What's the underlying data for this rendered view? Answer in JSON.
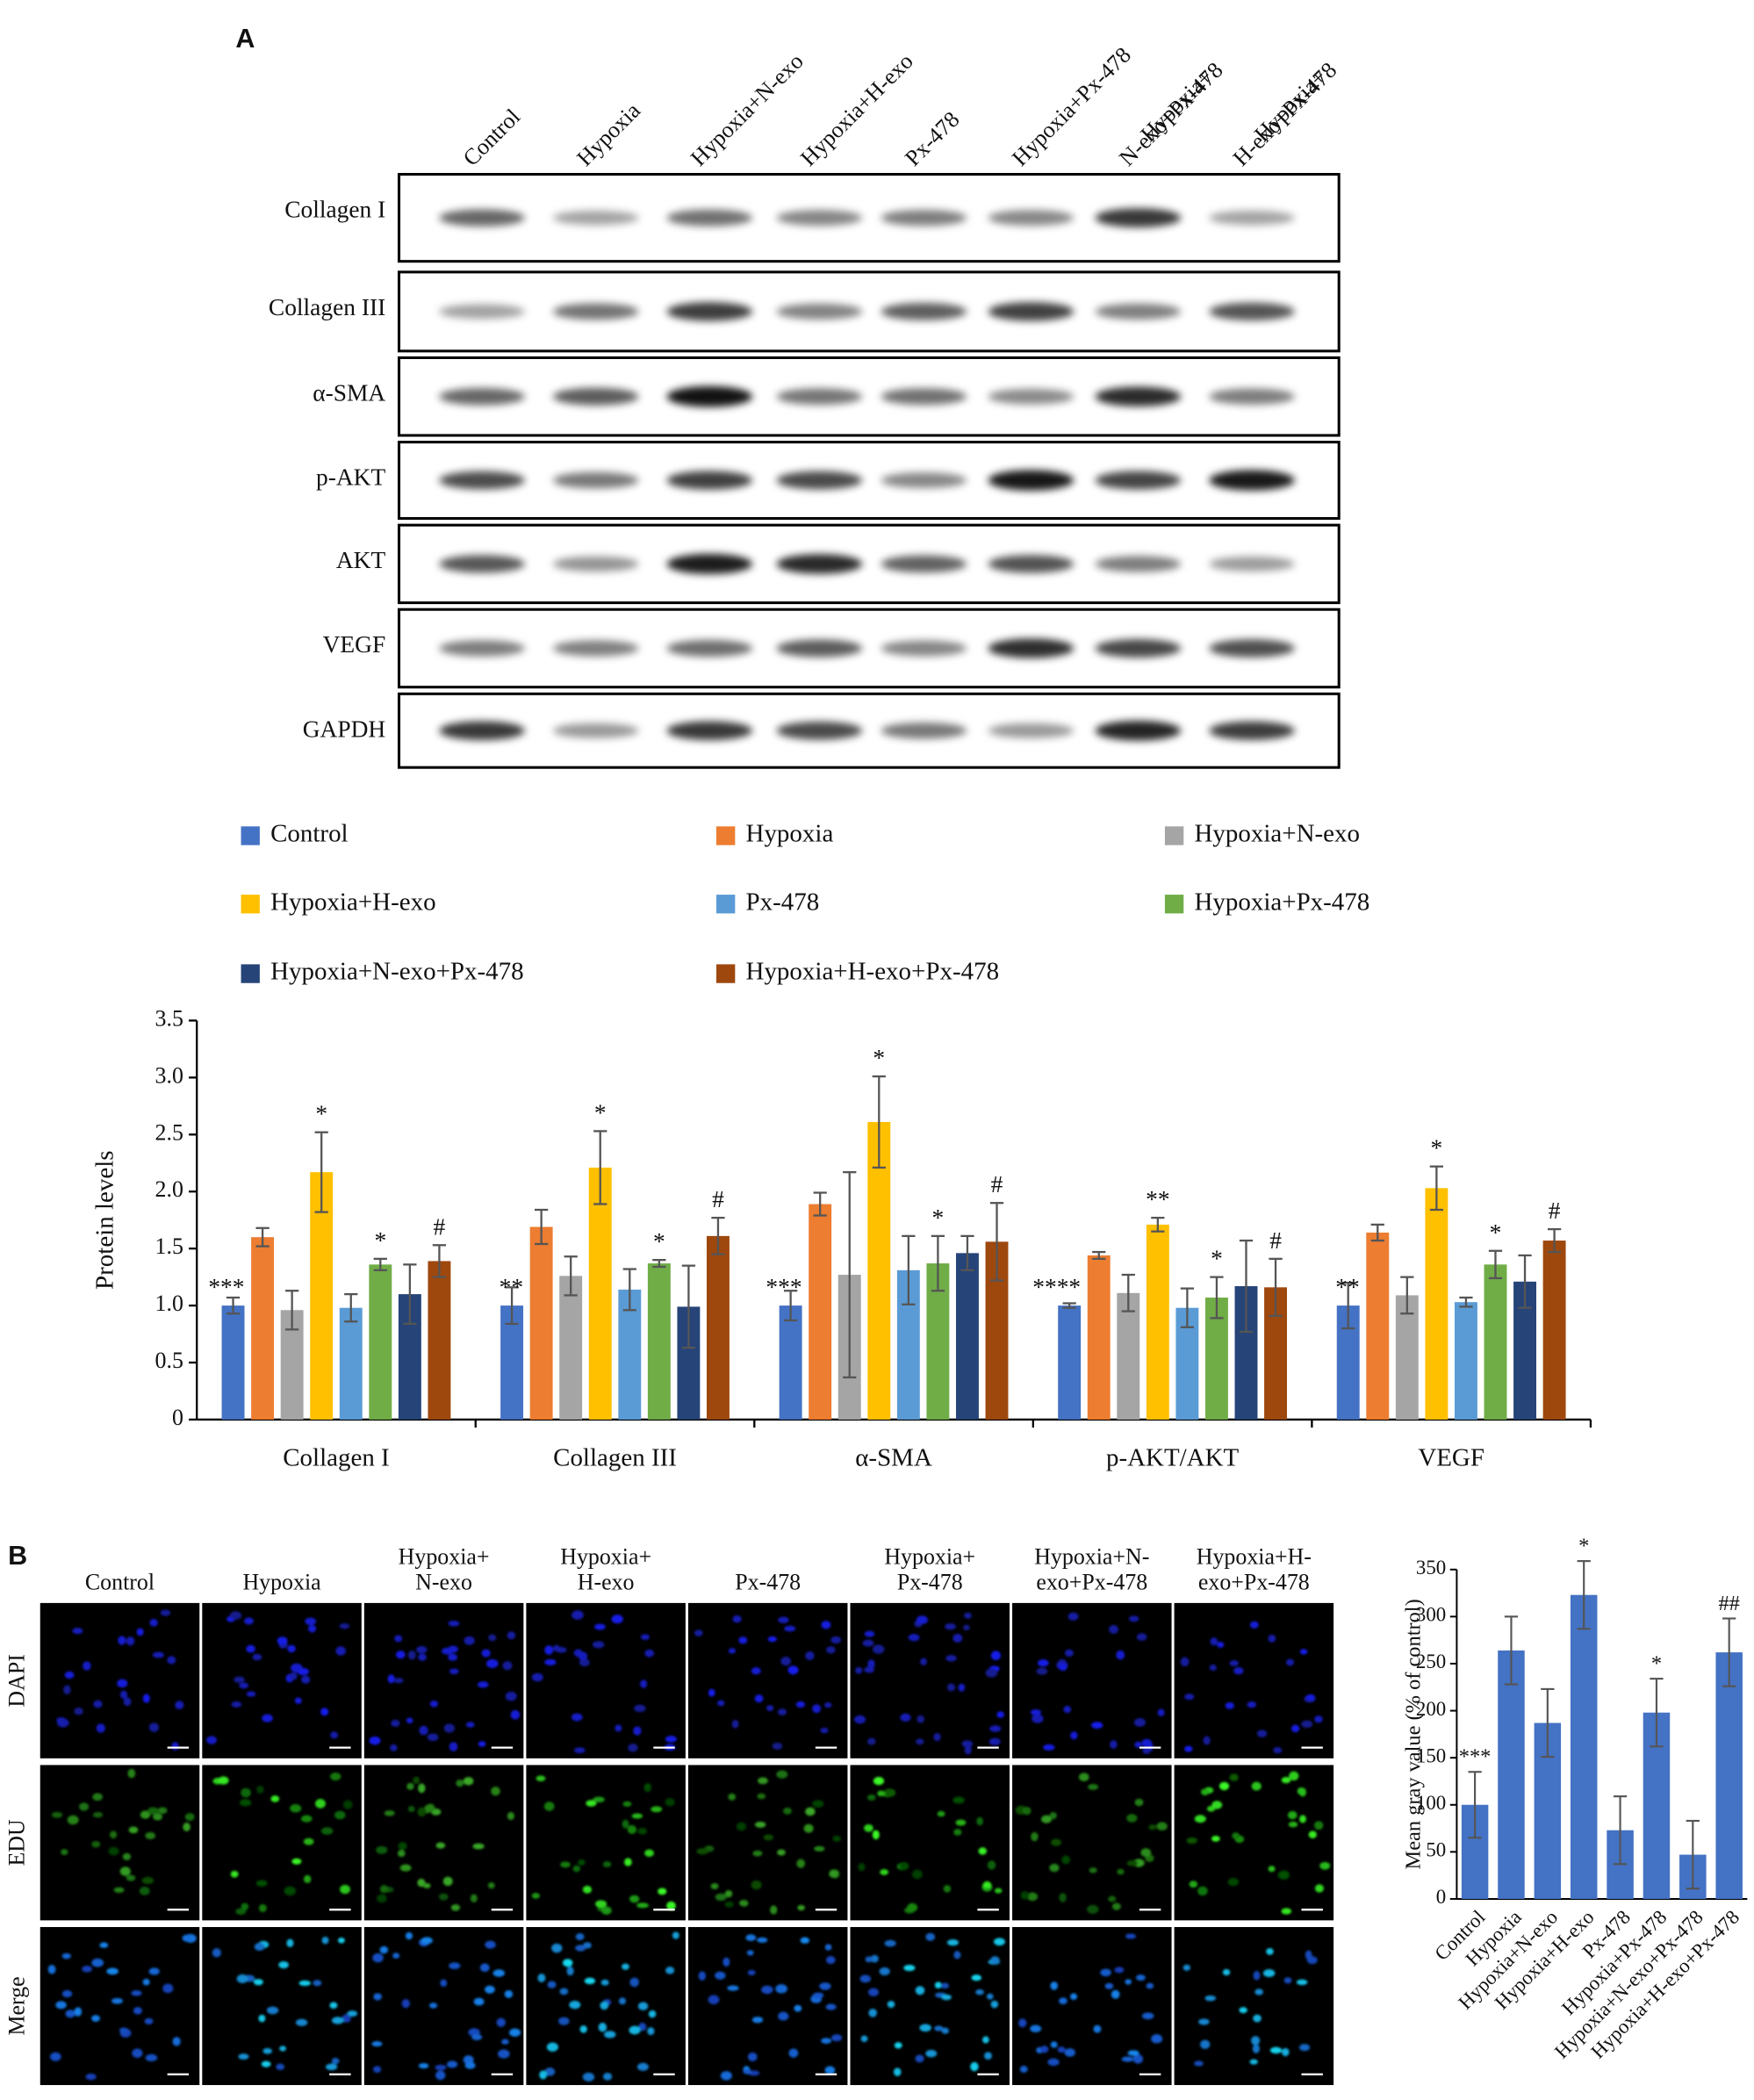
{
  "panel_labels": [
    "A",
    "B"
  ],
  "blot": {
    "lanes": [
      [
        "Control"
      ],
      [
        "Hypoxia"
      ],
      [
        "Hypoxia+N-exo"
      ],
      [
        "Hypoxia+H-exo"
      ],
      [
        "Px-478"
      ],
      [
        "Hypoxia+Px-478"
      ],
      [
        "Hypoxia+",
        "N-exo+Px-478"
      ],
      [
        "Hypoxia+",
        "H-exo+Px-478"
      ]
    ],
    "rows": [
      "Collagen I",
      "Collagen III",
      "α-SMA",
      "p-AKT",
      "AKT",
      "VEGF",
      "GAPDH"
    ]
  },
  "imaging": {
    "columns": [
      [
        "Control"
      ],
      [
        "Hypoxia"
      ],
      [
        "Hypoxia+",
        "N-exo"
      ],
      [
        "Hypoxia+",
        "H-exo"
      ],
      [
        "Px-478"
      ],
      [
        "Hypoxia+",
        "Px-478"
      ],
      [
        "Hypoxia+N-",
        "exo+Px-478"
      ],
      [
        "Hypoxia+H-",
        "exo+Px-478"
      ]
    ],
    "rows": [
      "DAPI",
      "EDU",
      "Merge"
    ]
  },
  "chart_data": [
    {
      "type": "grouped_bar",
      "ylabel": "Protein levels",
      "categories": [
        "Collagen I",
        "Collagen III",
        "α-SMA",
        "p-AKT/AKT",
        "VEGF"
      ],
      "ylim": [
        0,
        3.5
      ],
      "yticks": [
        0,
        0.5,
        {
          "value": 1,
          "label": "1.0"
        },
        1.5,
        {
          "value": 2,
          "label": "2.0"
        },
        2.5,
        {
          "value": 3,
          "label": "3.0"
        },
        3.5
      ],
      "series": [
        {
          "name": "Control",
          "color": "#4472c4",
          "values": [
            1.0,
            1.0,
            1.0,
            1.0,
            1.0
          ],
          "errors": [
            0.07,
            0.16,
            0.13,
            0.02,
            0.2
          ],
          "annotations": [
            "***",
            "**",
            "***",
            "****",
            "**"
          ]
        },
        {
          "name": "Hypoxia",
          "color": "#ed7d31",
          "values": [
            1.6,
            1.69,
            1.89,
            1.44,
            1.64
          ],
          "errors": [
            0.08,
            0.15,
            0.1,
            0.03,
            0.07
          ],
          "annotations": [
            null,
            null,
            null,
            null,
            null
          ]
        },
        {
          "name": "Hypoxia+N-exo",
          "color": "#a5a5a5",
          "values": [
            0.96,
            1.26,
            1.27,
            1.11,
            1.09
          ],
          "errors": [
            0.17,
            0.17,
            0.9,
            0.16,
            0.16
          ],
          "annotations": [
            null,
            null,
            null,
            null,
            null
          ]
        },
        {
          "name": "Hypoxia+H-exo",
          "color": "#ffc000",
          "values": [
            2.17,
            2.21,
            2.61,
            1.71,
            2.03
          ],
          "errors": [
            0.35,
            0.32,
            0.4,
            0.06,
            0.19
          ],
          "annotations": [
            "*",
            "*",
            "*",
            "**",
            "*"
          ]
        },
        {
          "name": "Px-478",
          "color": "#5b9bd5",
          "values": [
            0.98,
            1.14,
            1.31,
            0.98,
            1.03
          ],
          "errors": [
            0.12,
            0.18,
            0.3,
            0.17,
            0.04
          ],
          "annotations": [
            null,
            null,
            null,
            null,
            null
          ]
        },
        {
          "name": "Hypoxia+Px-478",
          "color": "#70ad47",
          "values": [
            1.36,
            1.37,
            1.37,
            1.07,
            1.36
          ],
          "errors": [
            0.05,
            0.03,
            0.24,
            0.18,
            0.12
          ],
          "annotations": [
            "*",
            "*",
            "*",
            "*",
            "*"
          ]
        },
        {
          "name": "Hypoxia+N-exo+Px-478",
          "color": "#264478",
          "values": [
            1.1,
            0.99,
            1.46,
            1.17,
            1.21
          ],
          "errors": [
            0.26,
            0.36,
            0.15,
            0.4,
            0.23
          ],
          "annotations": [
            null,
            null,
            null,
            null,
            null
          ]
        },
        {
          "name": "Hypoxia+H-exo+Px-478",
          "color": "#9e480e",
          "values": [
            1.39,
            1.61,
            1.56,
            1.16,
            1.57
          ],
          "errors": [
            0.14,
            0.16,
            0.34,
            0.25,
            0.1
          ],
          "annotations": [
            "#",
            "#",
            "#",
            "#",
            "#"
          ]
        }
      ]
    },
    {
      "type": "bar",
      "ylabel": "Mean gray value (% of control)",
      "categories": [
        "Control",
        "Hypoxia",
        "Hypoxia+N-exo",
        "Hypoxia+H-exo",
        "Px-478",
        "Hypoxia+Px-478",
        "Hypoxia+N-exo+Px-478",
        "Hypoxia+H-exo+Px-478"
      ],
      "color": "#4472c4",
      "values": [
        100,
        264,
        187,
        323,
        73,
        198,
        47,
        262
      ],
      "errors": [
        35,
        36,
        36,
        36,
        36,
        36,
        36,
        36
      ],
      "annotations": [
        "***",
        null,
        null,
        "*",
        null,
        "*",
        null,
        "##"
      ],
      "ylim": [
        0,
        350
      ],
      "yticks": [
        0,
        50,
        100,
        150,
        200,
        250,
        300,
        350
      ]
    }
  ]
}
